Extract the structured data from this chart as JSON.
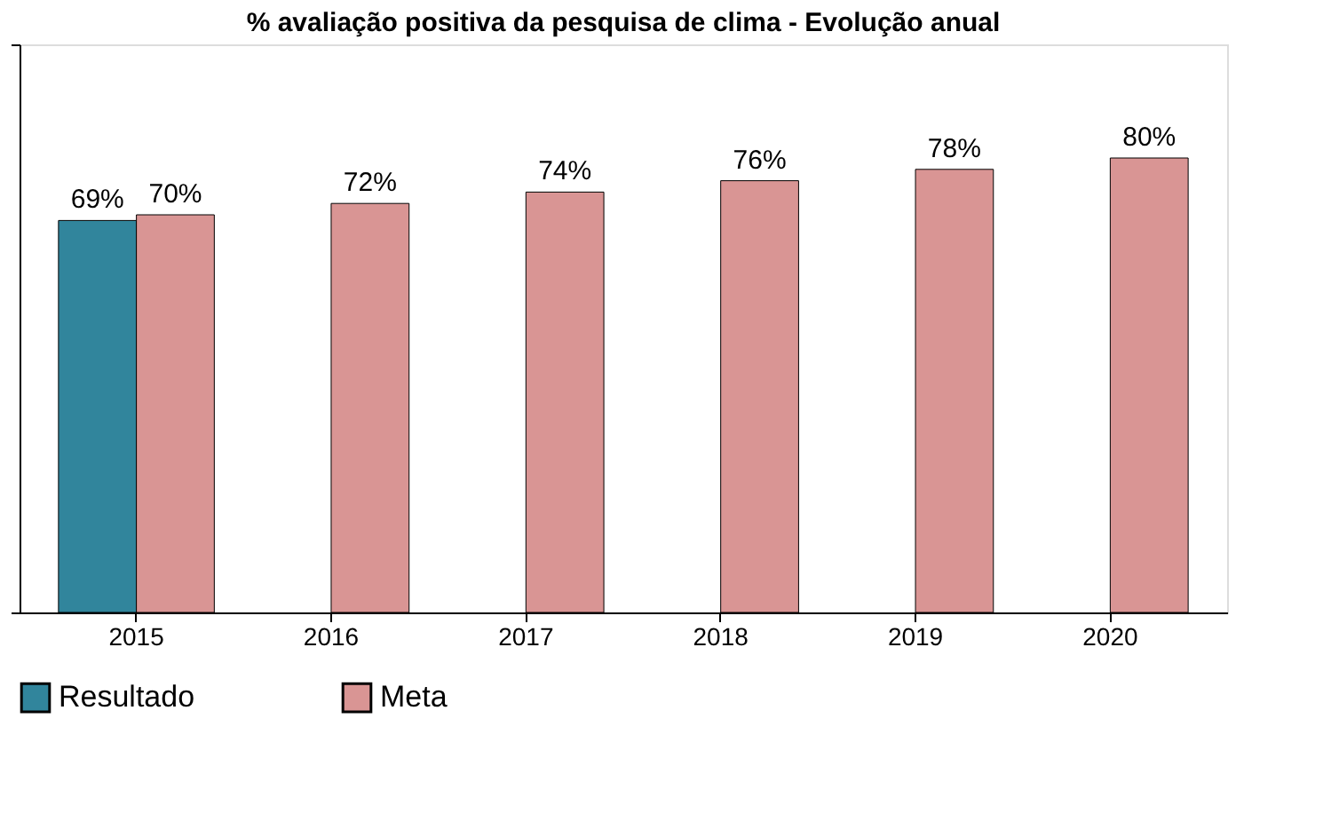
{
  "chart_data": {
    "type": "bar",
    "title": "% avaliação positiva da pesquisa de clima - Evolução  anual",
    "categories": [
      "2015",
      "2016",
      "2017",
      "2018",
      "2019",
      "2020"
    ],
    "series": [
      {
        "name": "Resultado",
        "color": "#31859c",
        "values": [
          69,
          null,
          null,
          null,
          null,
          null
        ],
        "value_labels": [
          "69%",
          null,
          null,
          null,
          null,
          null
        ]
      },
      {
        "name": "Meta",
        "color": "#d99594",
        "values": [
          70,
          72,
          74,
          76,
          78,
          80
        ],
        "value_labels": [
          "70%",
          "72%",
          "74%",
          "76%",
          "78%",
          "80%"
        ]
      }
    ],
    "ylim": [
      0,
      100
    ],
    "yticks": [
      {
        "value": 0,
        "label": null
      },
      {
        "value": 100,
        "label": null
      }
    ],
    "tick_labels": "x",
    "grid": false,
    "legend": "bottom"
  }
}
